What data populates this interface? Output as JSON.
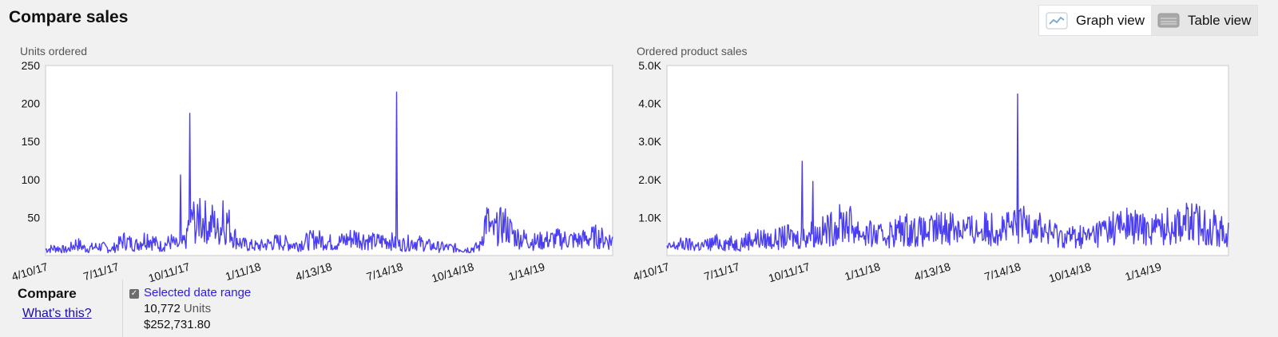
{
  "header": {
    "title": "Compare sales",
    "graph_view_label": "Graph view",
    "table_view_label": "Table view"
  },
  "compare": {
    "title": "Compare",
    "whats_this": "What's this?",
    "range_label": "Selected date range",
    "units_total": "10,772",
    "units_label": "Units",
    "sales_total": "$252,731.80"
  },
  "colors": {
    "series": "#4a3df2",
    "plot_bg": "#ffffff",
    "plot_border": "#d9d9d9"
  },
  "chart_data": [
    {
      "type": "line",
      "ylabel": "Units ordered",
      "ylim": [
        0,
        250
      ],
      "yticks": [
        50,
        100,
        150,
        200,
        250
      ],
      "ytick_labels": [
        "50",
        "100",
        "150",
        "200",
        "250"
      ],
      "xlim": [
        "2017-04-10",
        "2019-04-15"
      ],
      "xticks": [
        "2017-04-10",
        "2017-07-11",
        "2017-10-11",
        "2018-01-11",
        "2018-04-13",
        "2018-07-14",
        "2018-10-14",
        "2019-01-14"
      ],
      "xtick_labels": [
        "4/10/17",
        "7/11/17",
        "10/11/17",
        "1/11/18",
        "4/13/18",
        "7/14/18",
        "10/14/18",
        "1/14/19"
      ],
      "grid": false,
      "series": [
        {
          "points": [
            [
              "2017-04-10",
              8
            ],
            [
              "2017-04-24",
              10
            ],
            [
              "2017-05-08",
              7
            ],
            [
              "2017-05-20",
              16
            ],
            [
              "2017-06-01",
              9
            ],
            [
              "2017-06-20",
              12
            ],
            [
              "2017-07-05",
              8
            ],
            [
              "2017-07-20",
              20
            ],
            [
              "2017-08-05",
              14
            ],
            [
              "2017-08-20",
              24
            ],
            [
              "2017-09-05",
              12
            ],
            [
              "2017-09-20",
              18
            ],
            [
              "2017-09-30",
              12
            ],
            [
              "2017-10-02",
              106
            ],
            [
              "2017-10-04",
              15
            ],
            [
              "2017-10-10",
              22
            ],
            [
              "2017-10-14",
              187
            ],
            [
              "2017-10-17",
              55
            ],
            [
              "2017-10-22",
              35
            ],
            [
              "2017-10-27",
              75
            ],
            [
              "2017-11-01",
              50
            ],
            [
              "2017-11-07",
              35
            ],
            [
              "2017-11-13",
              45
            ],
            [
              "2017-11-20",
              30
            ],
            [
              "2017-11-26",
              72
            ],
            [
              "2017-12-02",
              45
            ],
            [
              "2017-12-08",
              28
            ],
            [
              "2017-12-20",
              15
            ],
            [
              "2018-01-10",
              12
            ],
            [
              "2018-02-05",
              18
            ],
            [
              "2018-03-01",
              14
            ],
            [
              "2018-03-25",
              22
            ],
            [
              "2018-04-20",
              16
            ],
            [
              "2018-05-15",
              24
            ],
            [
              "2018-06-10",
              18
            ],
            [
              "2018-07-01",
              20
            ],
            [
              "2018-07-09",
              215
            ],
            [
              "2018-07-12",
              14
            ],
            [
              "2018-08-01",
              18
            ],
            [
              "2018-08-25",
              12
            ],
            [
              "2018-09-20",
              10
            ],
            [
              "2018-10-10",
              8
            ],
            [
              "2018-10-25",
              12
            ],
            [
              "2018-11-02",
              48
            ],
            [
              "2018-11-10",
              30
            ],
            [
              "2018-11-25",
              42
            ],
            [
              "2018-12-10",
              25
            ],
            [
              "2019-01-05",
              18
            ],
            [
              "2019-02-01",
              22
            ],
            [
              "2019-03-01",
              20
            ],
            [
              "2019-03-25",
              25
            ],
            [
              "2019-04-10",
              20
            ]
          ]
        }
      ]
    },
    {
      "type": "line",
      "ylabel": "Ordered product sales",
      "ylim": [
        0,
        5000
      ],
      "yticks": [
        1000,
        2000,
        3000,
        4000,
        5000
      ],
      "ytick_labels": [
        "1.0K",
        "2.0K",
        "3.0K",
        "4.0K",
        "5.0K"
      ],
      "xlim": [
        "2017-04-10",
        "2019-04-15"
      ],
      "xticks": [
        "2017-04-10",
        "2017-07-11",
        "2017-10-11",
        "2018-01-11",
        "2018-04-13",
        "2018-07-14",
        "2018-10-14",
        "2019-01-14"
      ],
      "xtick_labels": [
        "4/10/17",
        "7/11/17",
        "10/11/17",
        "1/11/18",
        "4/13/18",
        "7/14/18",
        "10/14/18",
        "1/14/19"
      ],
      "grid": false,
      "series": [
        {
          "points": [
            [
              "2017-04-10",
              200
            ],
            [
              "2017-04-30",
              300
            ],
            [
              "2017-05-25",
              250
            ],
            [
              "2017-06-15",
              350
            ],
            [
              "2017-07-10",
              300
            ],
            [
              "2017-08-01",
              450
            ],
            [
              "2017-08-25",
              400
            ],
            [
              "2017-09-15",
              500
            ],
            [
              "2017-09-28",
              450
            ],
            [
              "2017-10-04",
              2480
            ],
            [
              "2017-10-07",
              500
            ],
            [
              "2017-10-14",
              600
            ],
            [
              "2017-10-18",
              1950
            ],
            [
              "2017-10-21",
              550
            ],
            [
              "2017-11-10",
              700
            ],
            [
              "2017-12-01",
              900
            ],
            [
              "2017-12-20",
              600
            ],
            [
              "2018-01-15",
              500
            ],
            [
              "2018-02-15",
              700
            ],
            [
              "2018-03-15",
              600
            ],
            [
              "2018-04-15",
              800
            ],
            [
              "2018-05-15",
              650
            ],
            [
              "2018-06-15",
              750
            ],
            [
              "2018-07-05",
              700
            ],
            [
              "2018-07-13",
              4250
            ],
            [
              "2018-07-16",
              800
            ],
            [
              "2018-08-01",
              900
            ],
            [
              "2018-08-20",
              600
            ],
            [
              "2018-09-15",
              500
            ],
            [
              "2018-10-14",
              500
            ],
            [
              "2018-11-05",
              700
            ],
            [
              "2018-12-01",
              800
            ],
            [
              "2018-12-25",
              700
            ],
            [
              "2019-01-20",
              750
            ],
            [
              "2019-02-15",
              900
            ],
            [
              "2019-03-10",
              800
            ],
            [
              "2019-03-25",
              750
            ],
            [
              "2019-04-10",
              600
            ]
          ]
        }
      ]
    }
  ]
}
